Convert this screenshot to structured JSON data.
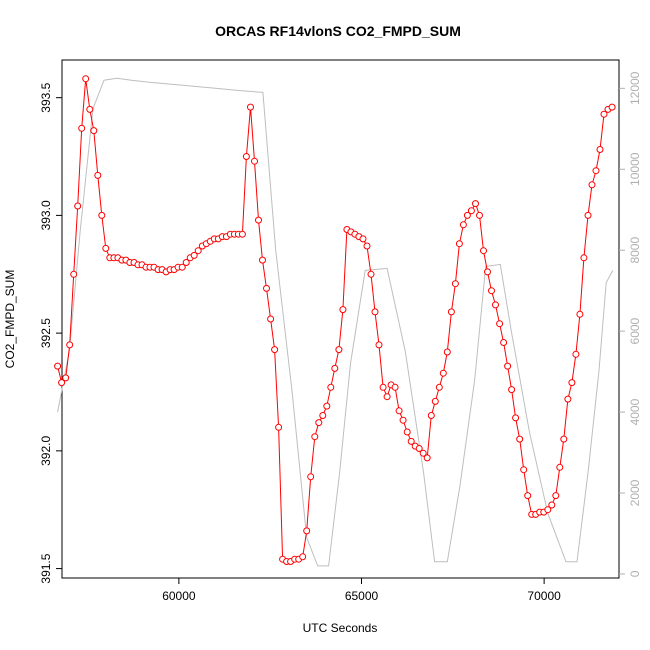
{
  "chart_data": {
    "type": "line",
    "title": "ORCAS RF14vlonS CO2_FMPD_SUM",
    "xlabel": "UTC Seconds",
    "ylabel": "CO2_FMPD_SUM",
    "xlim": [
      56800,
      72050
    ],
    "ylim": [
      391.46,
      393.66
    ],
    "y2lim": [
      -100,
      12700
    ],
    "x_ticks": [
      60000,
      65000,
      70000
    ],
    "y_ticks": [
      391.5,
      392.0,
      392.5,
      393.0,
      393.5
    ],
    "y_tick_labels": [
      "391.5",
      "392.0",
      "392.5",
      "393.0",
      "393.5"
    ],
    "y2_ticks": [
      0,
      2000,
      4000,
      6000,
      8000,
      10000,
      12000
    ],
    "grid": false,
    "colors": {
      "co2": "#ff0000",
      "altitude": "#bebebe",
      "axes": "#000000",
      "right_axis": "#b0b0b0"
    },
    "series": [
      {
        "style": "line-points",
        "color": "#ff0000",
        "axis": "left",
        "x": [
          56680,
          56790,
          56900,
          57010,
          57120,
          57230,
          57340,
          57450,
          57560,
          57670,
          57780,
          57890,
          58000,
          58110,
          58220,
          58330,
          58440,
          58550,
          58660,
          58770,
          58880,
          58990,
          59100,
          59210,
          59320,
          59430,
          59540,
          59650,
          59760,
          59870,
          59980,
          60090,
          60200,
          60310,
          60420,
          60530,
          60640,
          60750,
          60860,
          60970,
          61080,
          61190,
          61300,
          61410,
          61520,
          61630,
          61740,
          61850,
          61960,
          62070,
          62180,
          62290,
          62400,
          62510,
          62620,
          62730,
          62840,
          62950,
          63060,
          63170,
          63280,
          63390,
          63500,
          63610,
          63720,
          63830,
          63940,
          64050,
          64160,
          64270,
          64380,
          64490,
          64600,
          64710,
          64820,
          64930,
          65040,
          65150,
          65260,
          65370,
          65480,
          65590,
          65700,
          65810,
          65920,
          66030,
          66140,
          66250,
          66360,
          66470,
          66580,
          66690,
          66800,
          66910,
          67020,
          67130,
          67240,
          67350,
          67460,
          67570,
          67680,
          67790,
          67900,
          68010,
          68120,
          68230,
          68340,
          68450,
          68560,
          68670,
          68780,
          68890,
          69000,
          69110,
          69220,
          69330,
          69440,
          69550,
          69660,
          69770,
          69880,
          69990,
          70100,
          70210,
          70320,
          70430,
          70540,
          70650,
          70760,
          70870,
          70980,
          71090,
          71200,
          71310,
          71420,
          71530,
          71640,
          71750,
          71860
        ],
        "values": [
          392.36,
          392.29,
          392.31,
          392.45,
          392.75,
          393.04,
          393.37,
          393.58,
          393.45,
          393.36,
          393.17,
          393.0,
          392.86,
          392.82,
          392.82,
          392.82,
          392.81,
          392.81,
          392.8,
          392.8,
          392.79,
          392.79,
          392.78,
          392.78,
          392.78,
          392.77,
          392.77,
          392.76,
          392.77,
          392.77,
          392.78,
          392.78,
          392.8,
          392.82,
          392.83,
          392.85,
          392.87,
          392.88,
          392.89,
          392.9,
          392.9,
          392.91,
          392.91,
          392.92,
          392.92,
          392.92,
          392.92,
          393.25,
          393.46,
          393.23,
          392.98,
          392.81,
          392.69,
          392.56,
          392.43,
          392.1,
          391.54,
          391.53,
          391.53,
          391.54,
          391.54,
          391.55,
          391.66,
          391.89,
          392.06,
          392.12,
          392.15,
          392.19,
          392.27,
          392.35,
          392.43,
          392.6,
          392.94,
          392.93,
          392.92,
          392.91,
          392.9,
          392.87,
          392.75,
          392.59,
          392.45,
          392.27,
          392.23,
          392.28,
          392.27,
          392.17,
          392.13,
          392.08,
          392.04,
          392.02,
          392.01,
          391.99,
          391.97,
          392.15,
          392.21,
          392.27,
          392.33,
          392.42,
          392.59,
          392.71,
          392.88,
          392.96,
          393.0,
          393.02,
          393.05,
          393.0,
          392.85,
          392.76,
          392.68,
          392.62,
          392.54,
          392.46,
          392.36,
          392.26,
          392.14,
          392.05,
          391.92,
          391.81,
          391.73,
          391.73,
          391.74,
          391.74,
          391.75,
          391.77,
          391.81,
          391.93,
          392.05,
          392.22,
          392.29,
          392.41,
          392.58,
          392.82,
          393.0,
          393.13,
          393.19,
          393.28,
          393.43,
          393.45,
          393.46
        ]
      },
      {
        "style": "line",
        "color": "#bebebe",
        "axis": "right",
        "x": [
          56680,
          57000,
          57300,
          57650,
          57950,
          58300,
          58700,
          59200,
          59800,
          60400,
          61000,
          61600,
          62300,
          62650,
          63100,
          63500,
          63800,
          64100,
          64400,
          64700,
          65100,
          65700,
          66200,
          66700,
          67000,
          67350,
          67700,
          68100,
          68400,
          68800,
          69100,
          69600,
          70100,
          70600,
          70900,
          71200,
          71500,
          71700,
          71880
        ],
        "values": [
          4000,
          5500,
          8500,
          11500,
          12200,
          12250,
          12200,
          12150,
          12100,
          12050,
          12000,
          11950,
          11900,
          8000,
          4500,
          900,
          200,
          200,
          2500,
          5200,
          7500,
          7550,
          5500,
          2500,
          300,
          300,
          2200,
          4800,
          7600,
          7650,
          6000,
          3500,
          1500,
          300,
          300,
          2500,
          5000,
          7200,
          7500
        ]
      }
    ]
  }
}
